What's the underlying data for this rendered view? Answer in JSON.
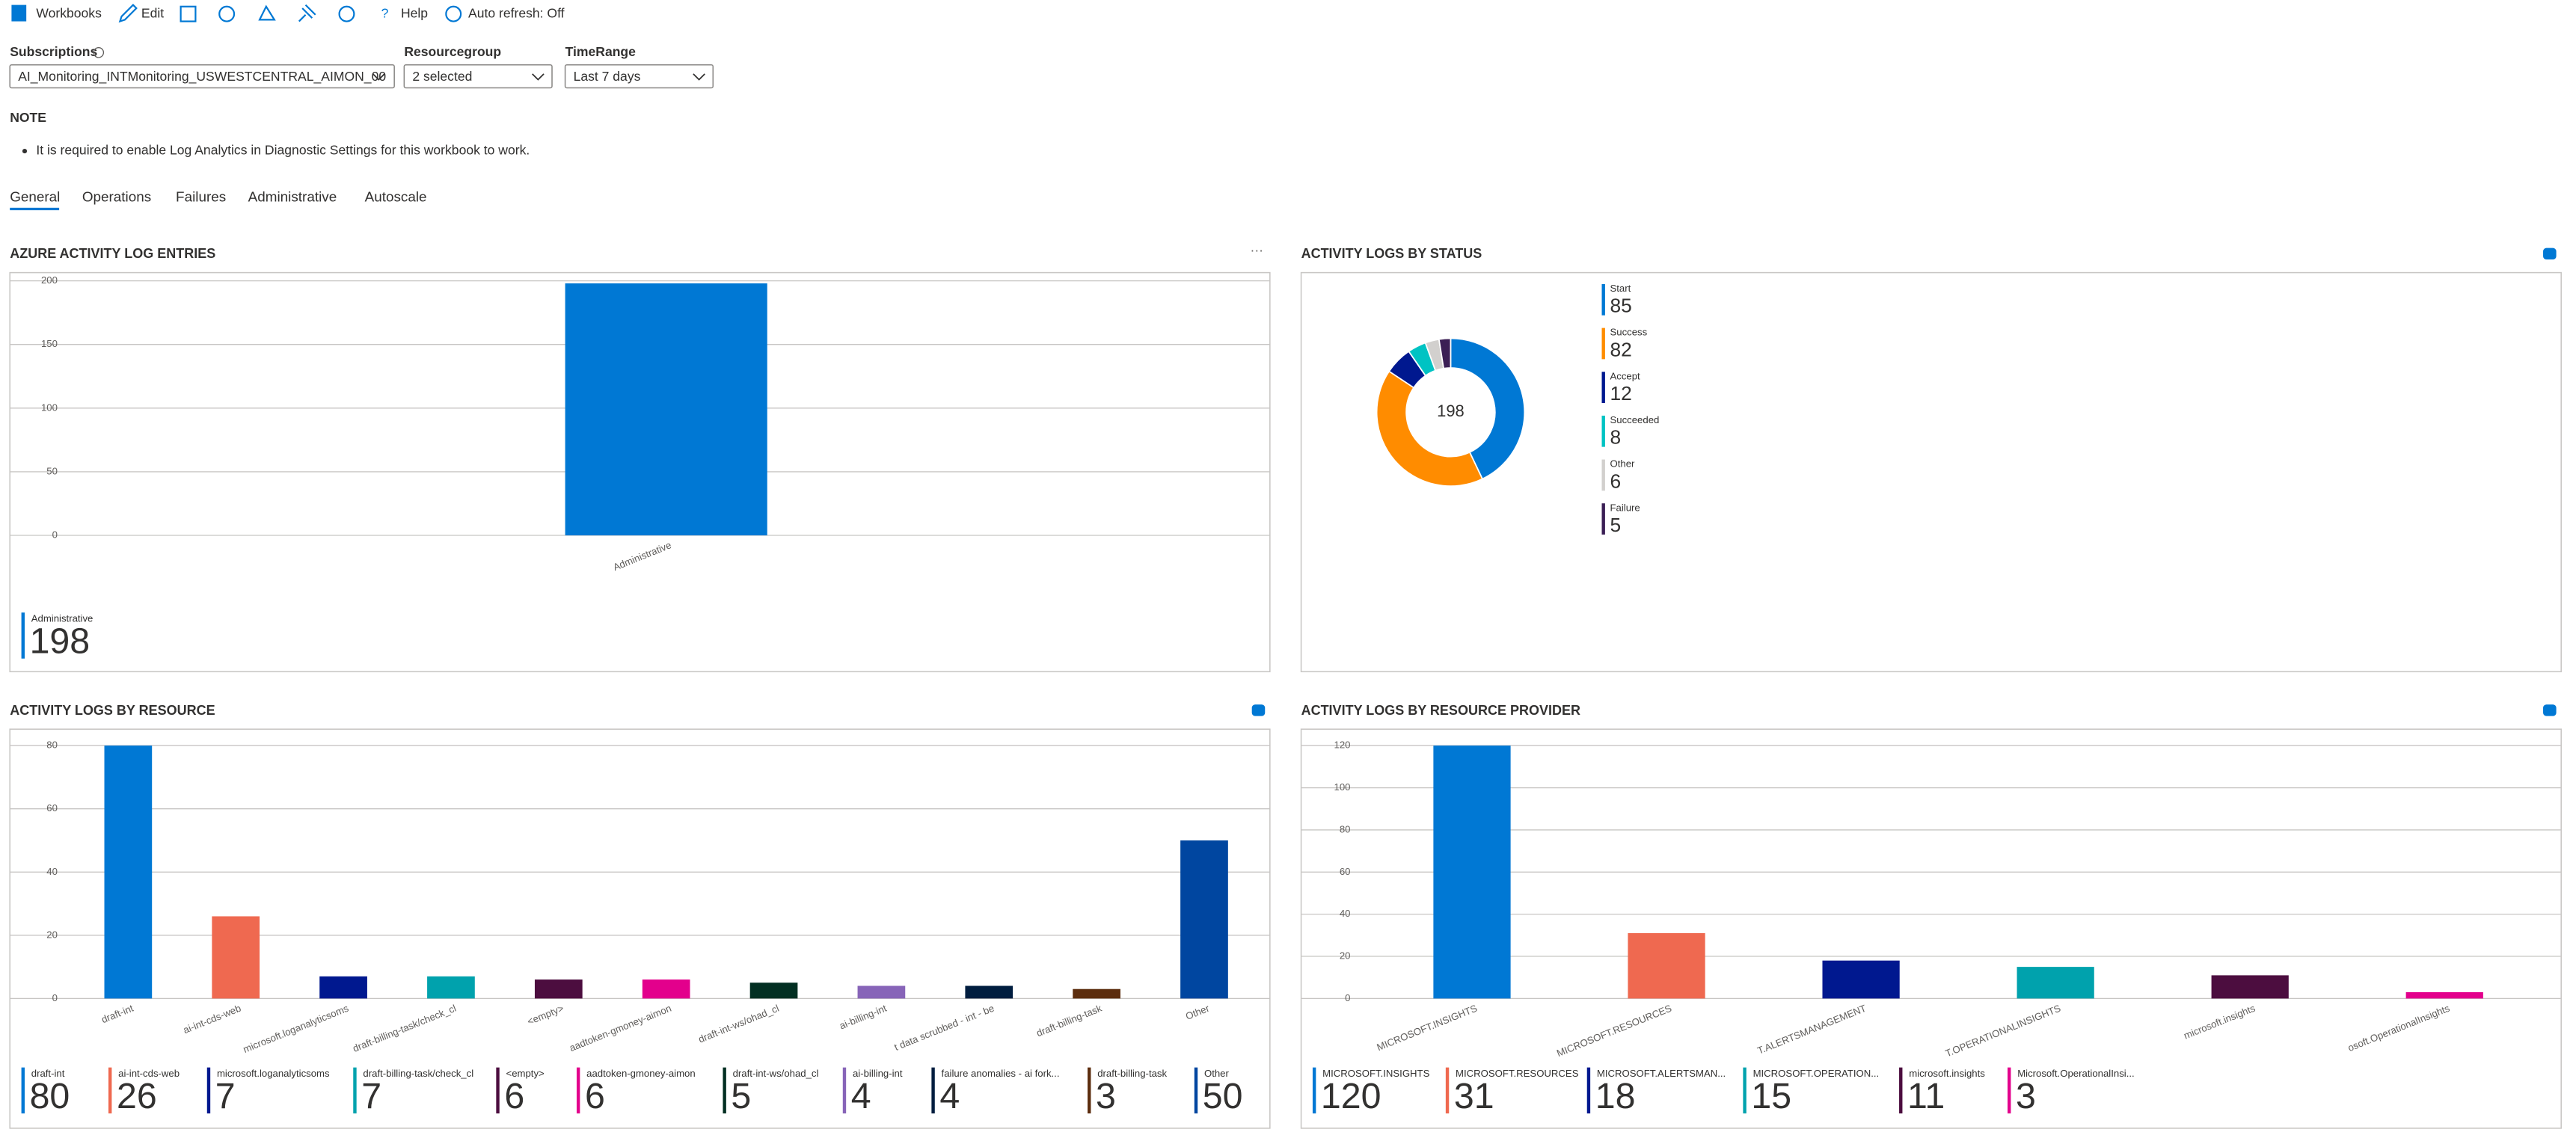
{
  "toolbar": {
    "items": [
      "Workbooks",
      "Edit",
      "Help",
      "Auto refresh: Off"
    ]
  },
  "parameters": [
    {
      "label": "Subscriptions",
      "value": "AI_Monitoring_INTMonitoring_USWESTCENTRAL_AIMON_00"
    },
    {
      "label": "Resourcegroup",
      "value": "2 selected"
    },
    {
      "label": "TimeRange",
      "value": "Last 7 days"
    }
  ],
  "note": {
    "title": "NOTE",
    "bullets": [
      "It is required to enable Log Analytics in Diagnostic Settings for this workbook to work."
    ]
  },
  "tabs": [
    "General",
    "Operations",
    "Failures",
    "Administrative",
    "Autoscale"
  ],
  "chart_data": [
    {
      "type": "bar",
      "title": "AZURE ACTIVITY LOG ENTRIES",
      "categories": [
        "Administrative"
      ],
      "values": [
        198
      ],
      "colors": [
        "#0078d4"
      ],
      "ylim": [
        0,
        200
      ],
      "yticks": [
        0,
        50,
        100,
        150,
        200
      ],
      "grid": true
    },
    {
      "type": "donut",
      "title": "ACTIVITY LOGS BY STATUS",
      "categories": [
        "Start",
        "Success",
        "Accept",
        "Succeeded",
        "Other",
        "Failure"
      ],
      "values": [
        85,
        82,
        12,
        8,
        6,
        5
      ],
      "colors": [
        "#0078d4",
        "#ff8c00",
        "#00188f",
        "#00c3c3",
        "#d2d0ce",
        "#3b1f55"
      ],
      "total": 198
    },
    {
      "type": "bar",
      "title": "ACTIVITY LOGS BY RESOURCE",
      "categories": [
        "draft-int",
        "ai-int-cds-web",
        "microsoft.loganalyticsoms",
        "draft-billing-task/check_cl",
        "<empty>",
        "aadtoken-gmoney-aimon",
        "draft-int-ws/ohad_cl",
        "ai-billing-int",
        "t data scrubbed - int - be",
        "draft-billing-task",
        "Other"
      ],
      "legend_labels": [
        "draft-int",
        "ai-int-cds-web",
        "microsoft.loganalyticsoms",
        "draft-billing-task/check_cl",
        "<empty>",
        "aadtoken-gmoney-aimon",
        "draft-int-ws/ohad_cl",
        "ai-billing-int",
        "failure anomalies - ai fork...",
        "draft-billing-task",
        "Other"
      ],
      "values": [
        80,
        26,
        7,
        7,
        6,
        6,
        5,
        4,
        4,
        3,
        50
      ],
      "colors": [
        "#0078d4",
        "#ef6950",
        "#00188f",
        "#00a2ad",
        "#4c0d3f",
        "#e3008c",
        "#022f22",
        "#8764b8",
        "#001d3f",
        "#5c2d0e",
        "#0046a0"
      ],
      "ylim": [
        0,
        80
      ],
      "yticks": [
        0,
        20,
        40,
        60,
        80
      ],
      "grid": true
    },
    {
      "type": "bar",
      "title": "ACTIVITY LOGS BY RESOURCE PROVIDER",
      "categories": [
        "MICROSOFT.INSIGHTS",
        "MICROSOFT.RESOURCES",
        "T.ALERTSMANAGEMENT",
        "T.OPERATIONALINSIGHTS",
        "microsoft.insights",
        "osoft.OperationalInsights"
      ],
      "legend_labels": [
        "MICROSOFT.INSIGHTS",
        "MICROSOFT.RESOURCES",
        "MICROSOFT.ALERTSMAN...",
        "MICROSOFT.OPERATION...",
        "microsoft.insights",
        "Microsoft.OperationalInsi..."
      ],
      "values": [
        120,
        31,
        18,
        15,
        11,
        3
      ],
      "colors": [
        "#0078d4",
        "#ef6950",
        "#00188f",
        "#00a2ad",
        "#4c0d3f",
        "#e3008c"
      ],
      "ylim": [
        0,
        120
      ],
      "yticks": [
        0,
        20,
        40,
        60,
        80,
        100,
        120
      ],
      "grid": true
    }
  ]
}
